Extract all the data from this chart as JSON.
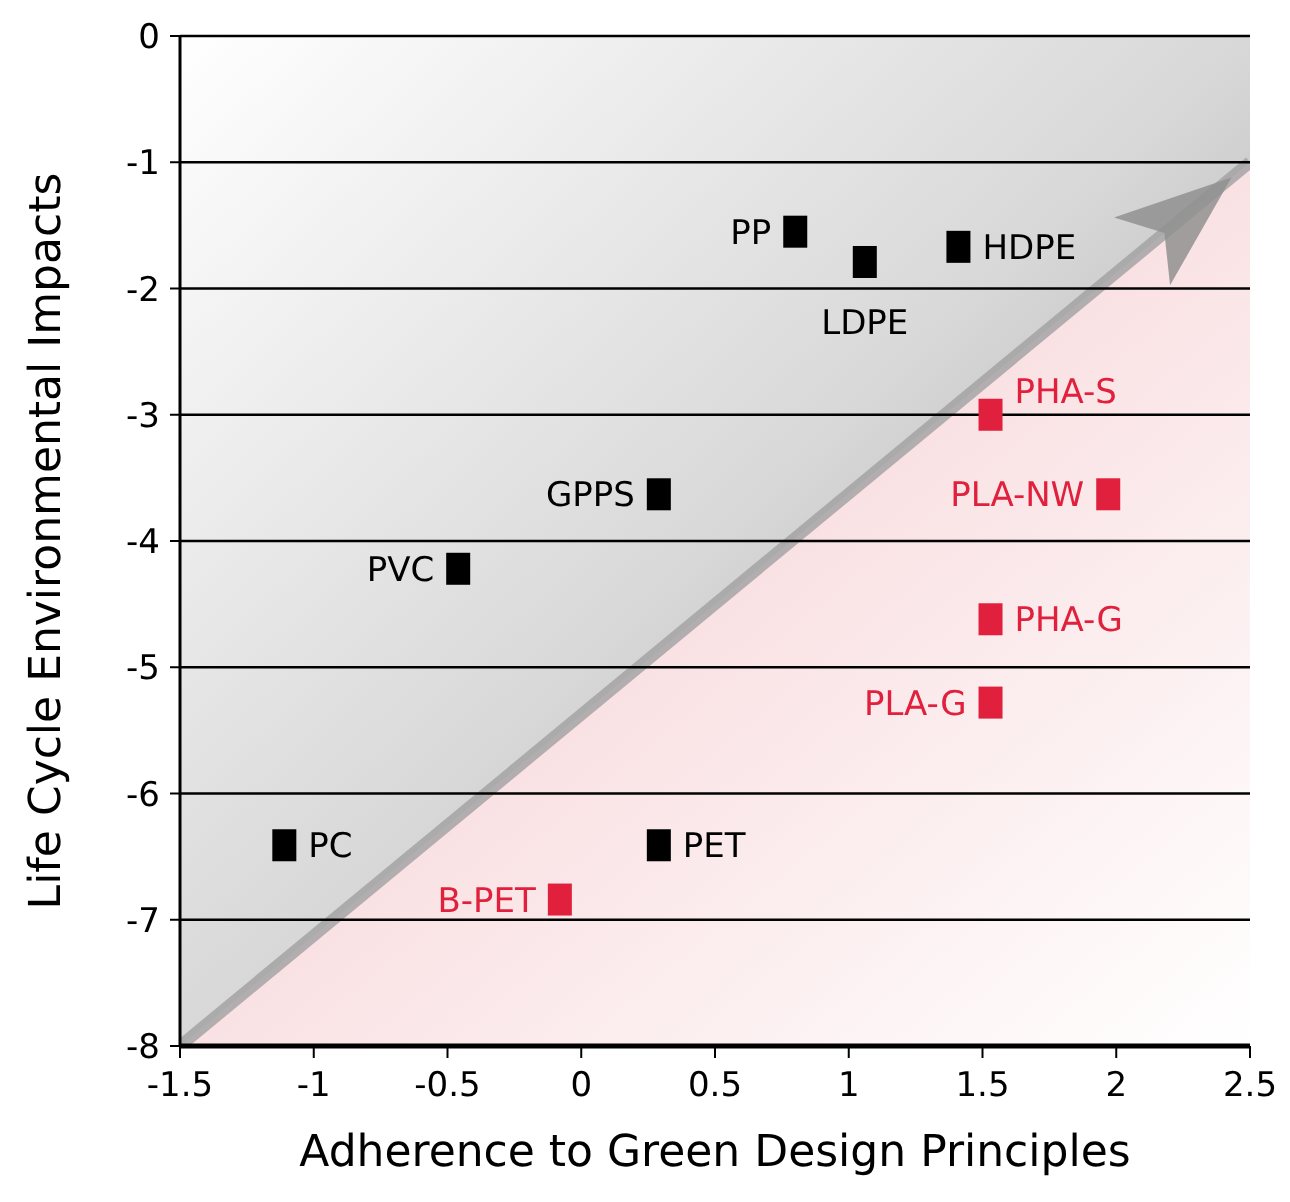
{
  "chart_data": {
    "type": "scatter",
    "xlabel": "Adherence to Green Design Principles",
    "ylabel": "Life Cycle Environmental Impacts",
    "xlim": [
      -1.5,
      2.5
    ],
    "ylim": [
      -8,
      0
    ],
    "xticks": [
      -1.5,
      -1,
      -0.5,
      0,
      0.5,
      1,
      1.5,
      2,
      2.5
    ],
    "yticks": [
      -8,
      -7,
      -6,
      -5,
      -4,
      -3,
      -2,
      -1,
      0
    ],
    "grid": "y",
    "marker": "square",
    "series": [
      {
        "type": "area",
        "color": "#f4c4c8",
        "marker": "none",
        "x": [
          -1.5,
          2.5
        ],
        "values": [
          -8,
          -1
        ]
      },
      {
        "type": "scatter",
        "color": "#000000",
        "x": [
          0.8,
          1.06,
          1.41,
          0.29,
          -0.46,
          -1.11,
          0.29
        ],
        "values": [
          -1.55,
          -1.79,
          -1.67,
          -3.63,
          -4.22,
          -6.41,
          -6.41
        ]
      },
      {
        "type": "scatter",
        "color": "#e0203c",
        "x": [
          1.53,
          1.97,
          1.53,
          1.53,
          -0.08
        ],
        "values": [
          -3.0,
          -3.63,
          -4.62,
          -5.28,
          -6.84
        ]
      }
    ],
    "annotations": [
      {
        "text": "PP",
        "x": 0.8,
        "y": -1.55
      },
      {
        "text": "LDPE",
        "x": 1.06,
        "y": -1.79
      },
      {
        "text": "HDPE",
        "x": 1.41,
        "y": -1.67
      },
      {
        "text": "GPPS",
        "x": 0.29,
        "y": -3.63
      },
      {
        "text": "PVC",
        "x": -0.46,
        "y": -4.22
      },
      {
        "text": "PC",
        "x": -1.11,
        "y": -6.41
      },
      {
        "text": "PET",
        "x": 0.29,
        "y": -6.41
      },
      {
        "text": "PHA-S",
        "x": 1.53,
        "y": -3.0
      },
      {
        "text": "PLA-NW",
        "x": 1.97,
        "y": -3.63
      },
      {
        "text": "PHA-G",
        "x": 1.53,
        "y": -4.62
      },
      {
        "text": "PLA-G",
        "x": 1.53,
        "y": -5.28
      },
      {
        "text": "B-PET",
        "x": -0.08,
        "y": -6.84
      }
    ]
  }
}
